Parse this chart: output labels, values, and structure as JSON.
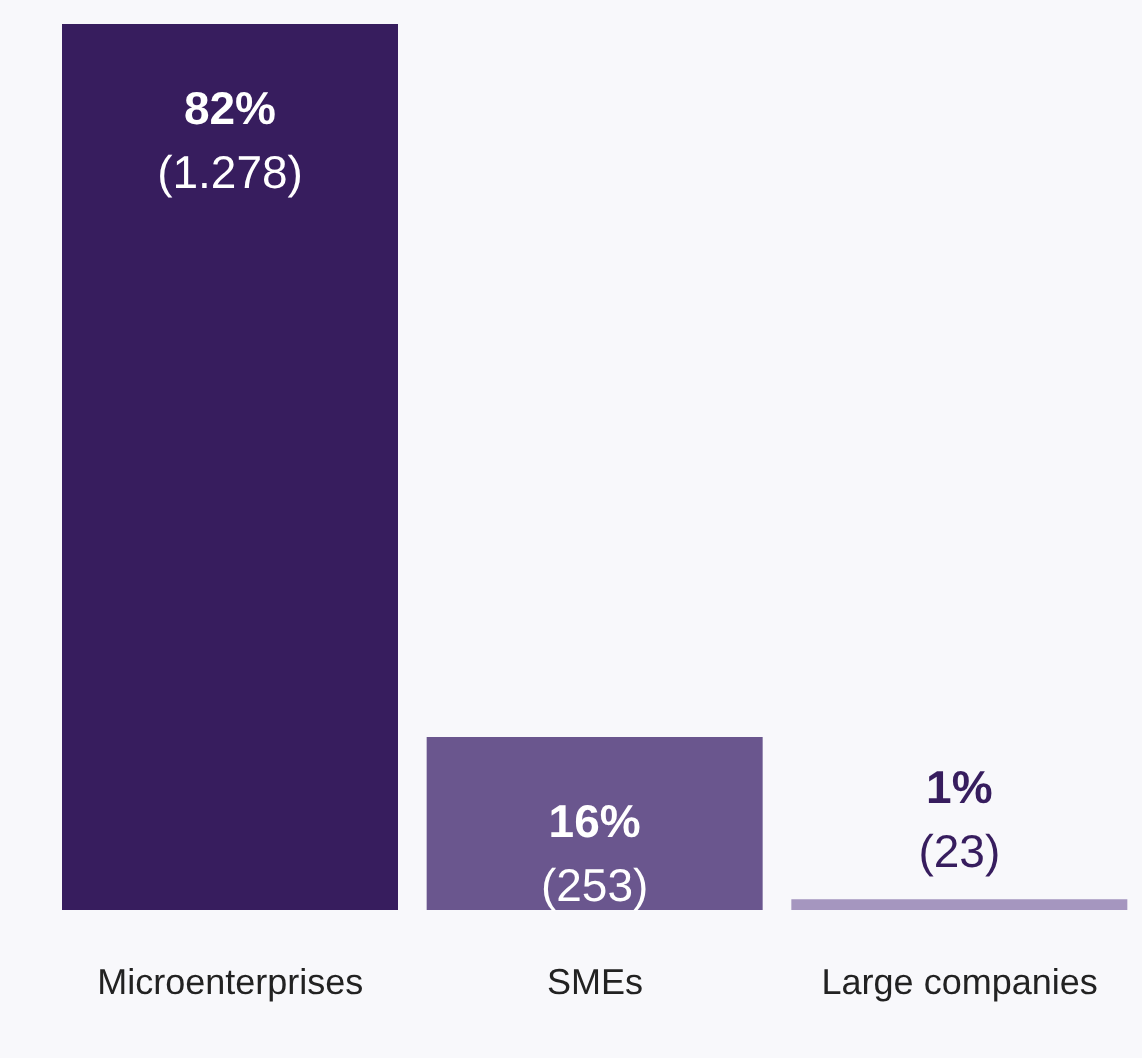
{
  "chart_data": {
    "type": "bar",
    "categories": [
      "Microenterprises",
      "SMEs",
      "Large companies"
    ],
    "values": [
      82,
      16,
      1
    ],
    "colors": [
      "#371d5e",
      "#6a568e",
      "#a596bf"
    ],
    "value_labels": [
      "82%\n(1.278)",
      "16%\n(253)",
      "1%\n(23)"
    ]
  }
}
